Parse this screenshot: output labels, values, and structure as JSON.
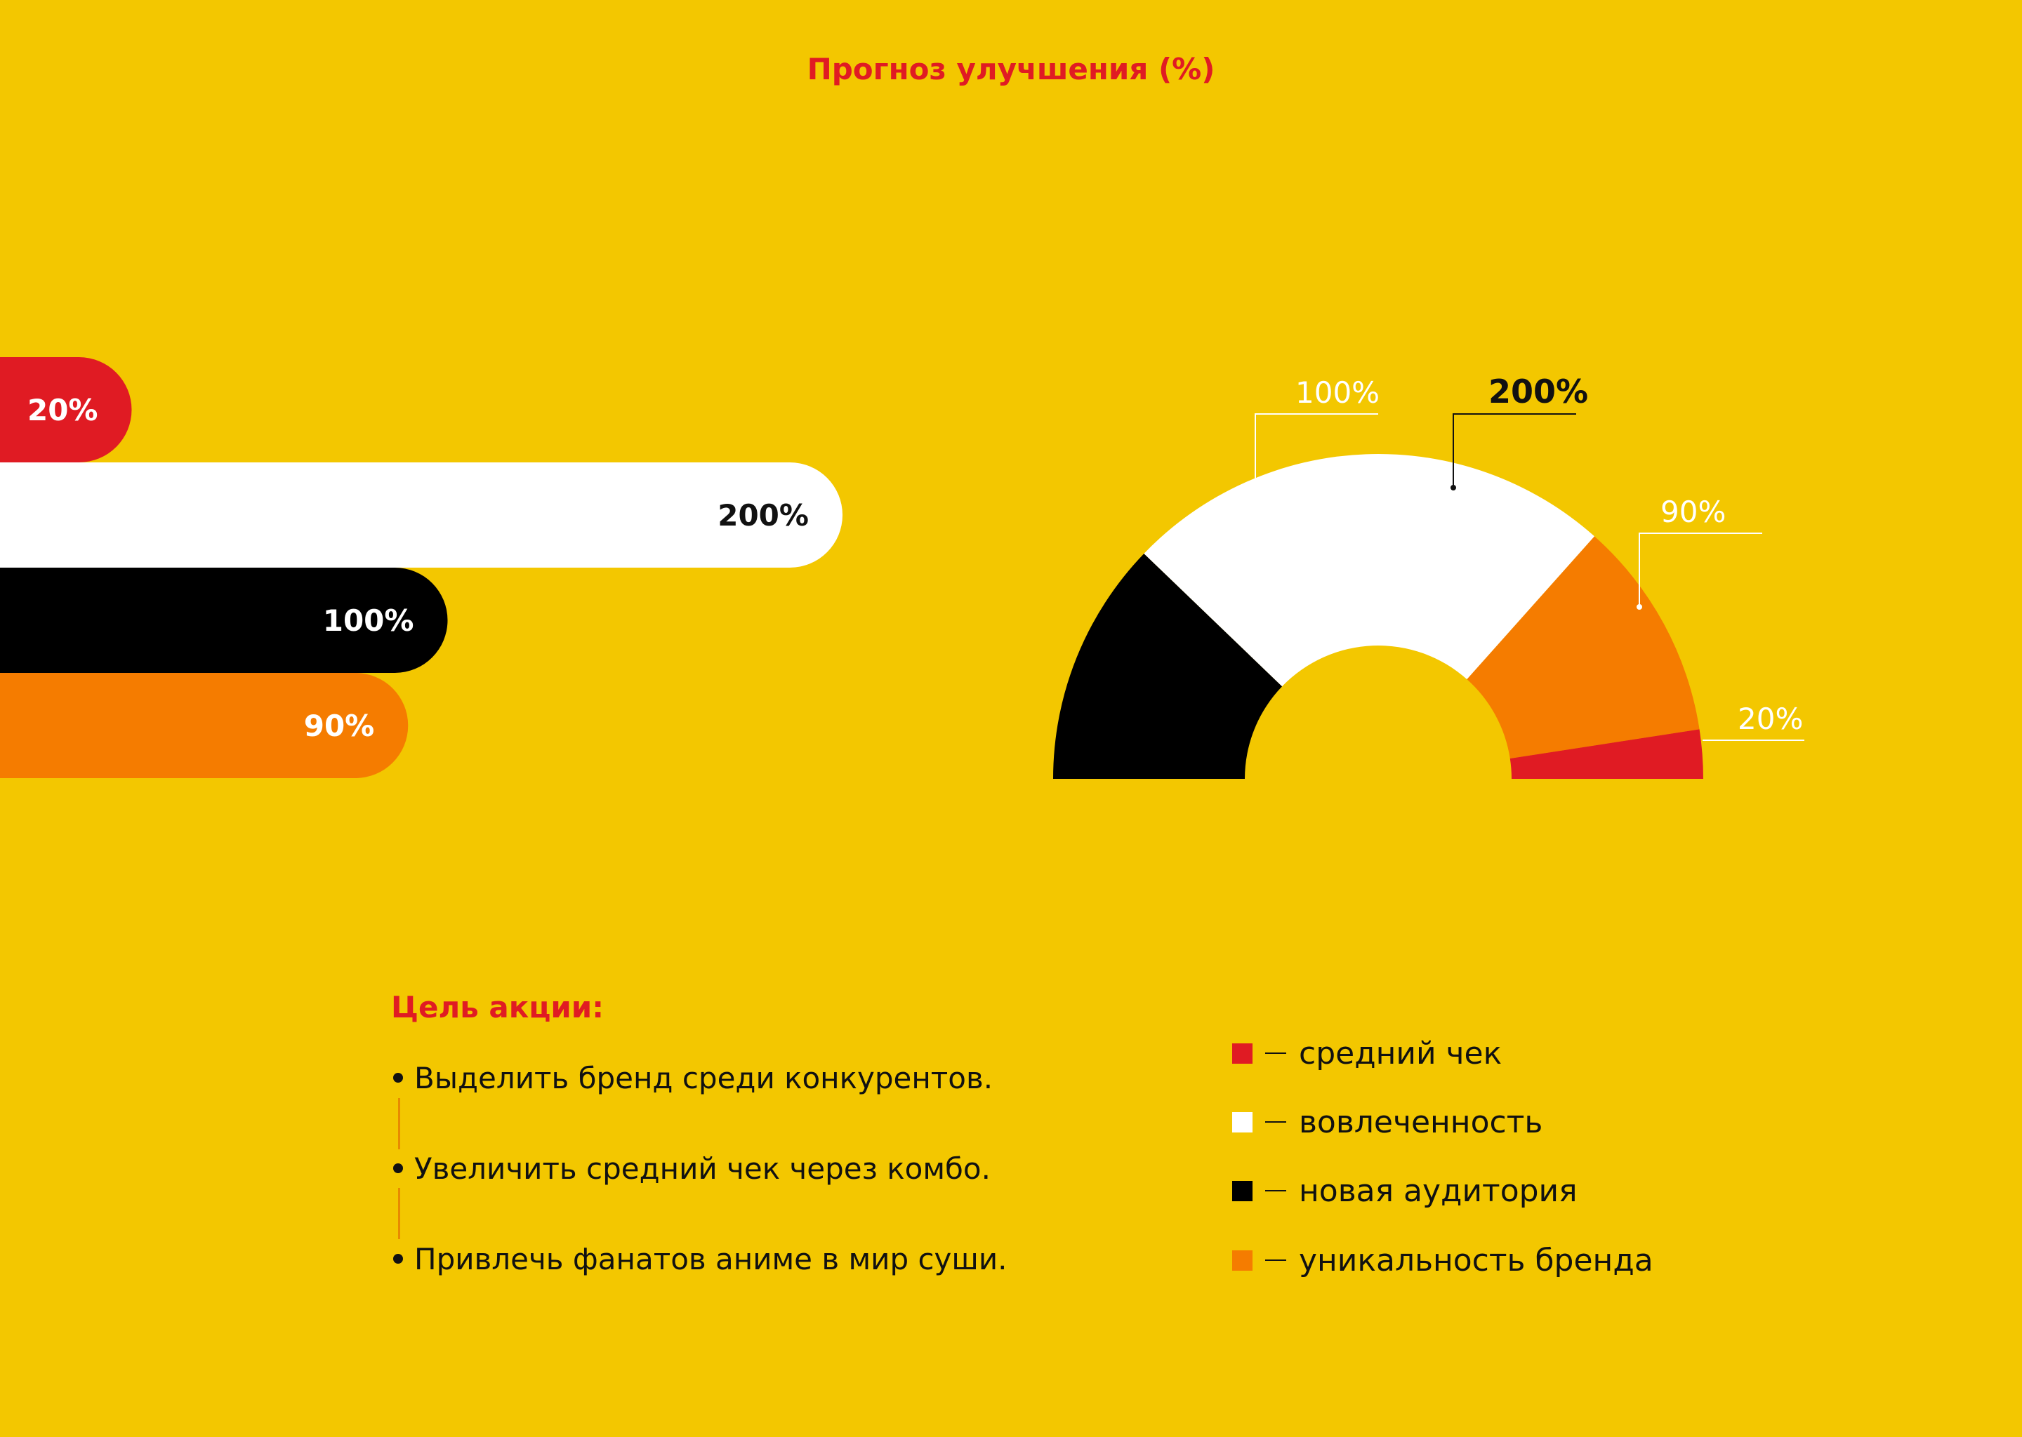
{
  "colors": {
    "background": "#F3C700",
    "accent_red": "#E01B23",
    "white": "#FFFFFF",
    "black": "#000000",
    "orange": "#F57C00"
  },
  "chart_data": [
    {
      "type": "bar",
      "orientation": "horizontal",
      "title": "Прогноз улучшения (%)",
      "unit": "%",
      "categories": [
        "средний чек",
        "вовлеченность",
        "новая аудитория",
        "уникальность бренда"
      ],
      "values": [
        20,
        200,
        100,
        90
      ],
      "labels": [
        "20%",
        "200%",
        "100%",
        "90%"
      ],
      "colors": [
        "#E01B23",
        "#FFFFFF",
        "#000000",
        "#F57C00"
      ]
    },
    {
      "type": "pie",
      "shape": "half-donut",
      "categories": [
        "новая аудитория",
        "вовлеченность",
        "уникальность бренда",
        "средний чек"
      ],
      "values": [
        100,
        200,
        90,
        20
      ],
      "labels": [
        "100%",
        "200%",
        "90%",
        "20%"
      ],
      "colors": [
        "#000000",
        "#FFFFFF",
        "#F57C00",
        "#E01B23"
      ]
    }
  ],
  "goals": {
    "heading": "Цель акции:",
    "items": [
      "Выделить бренд среди конкурентов.",
      "Увеличить средний чек через комбо.",
      "Привлечь фанатов аниме в мир суши."
    ]
  },
  "legend": [
    {
      "label": "средний чек",
      "color": "#E01B23"
    },
    {
      "label": "вовлеченность",
      "color": "#FFFFFF"
    },
    {
      "label": "новая аудитория",
      "color": "#000000"
    },
    {
      "label": "уникальность бренда",
      "color": "#F57C00"
    }
  ]
}
